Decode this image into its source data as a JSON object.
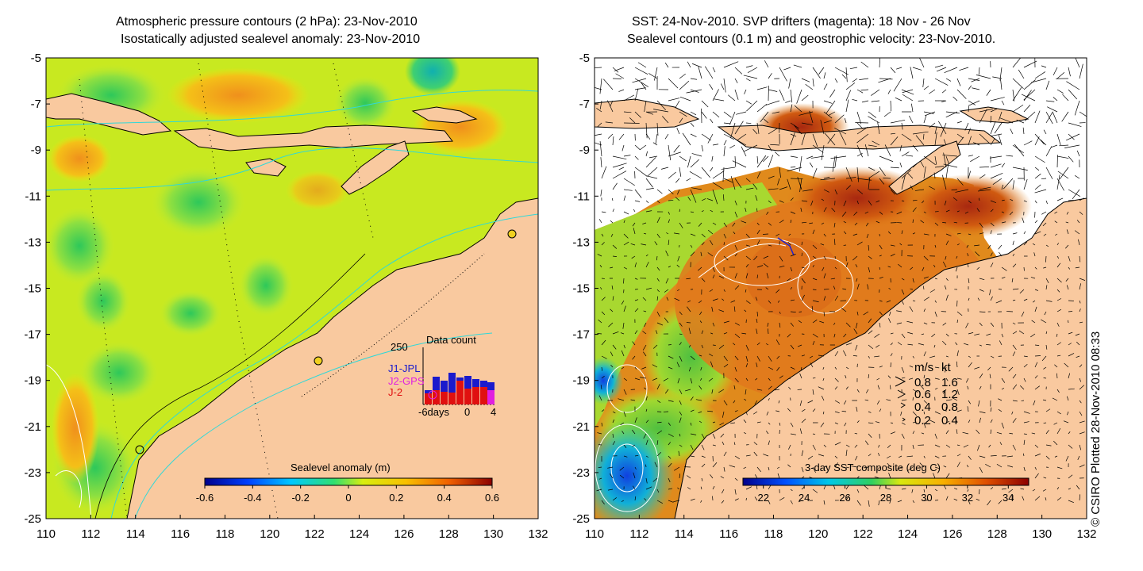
{
  "left_panel": {
    "title_line1": "Atmospheric pressure contours (2 hPa): 23-Nov-2010",
    "title_line2": "Isostatically adjusted sealevel anomaly: 23-Nov-2010",
    "colorbar": {
      "label": "Sealevel anomaly (m)",
      "ticks": [
        "-0.6",
        "-0.4",
        "-0.2",
        "0",
        "0.2",
        "0.4",
        "0.6"
      ],
      "range": [
        -0.6,
        0.6
      ]
    },
    "inset": {
      "title": "Data count",
      "ymax_label": "250",
      "legend": [
        {
          "label": "J1-JPL",
          "color": "#1a1acc"
        },
        {
          "label": "J2-GPS",
          "color": "#e020e0"
        },
        {
          "label": "J-2",
          "color": "#e01010"
        }
      ],
      "x_labels": [
        "-6days",
        "0",
        "4"
      ]
    }
  },
  "right_panel": {
    "title_line1": "SST: 24-Nov-2010. SVP drifters (magenta): 18 Nov - 26 Nov",
    "title_line2": "Sealevel contours (0.1 m) and geostrophic velocity: 23-Nov-2010.",
    "colorbar": {
      "label": "3-day SST composite (deg C)",
      "ticks": [
        "22",
        "24",
        "26",
        "28",
        "30",
        "32",
        "34"
      ],
      "range": [
        21,
        35
      ]
    },
    "speed_legend": {
      "header_ms": "m/s",
      "header_kt": "kt",
      "rows": [
        {
          "ms": "0.8",
          "kt": "1.6"
        },
        {
          "ms": "0.6",
          "kt": "1.2"
        },
        {
          "ms": "0.4",
          "kt": "0.8"
        },
        {
          "ms": "0.2",
          "kt": "0.4"
        }
      ]
    }
  },
  "axes": {
    "y_ticks": [
      "-5",
      "-7",
      "-9",
      "-11",
      "-13",
      "-15",
      "-17",
      "-19",
      "-21",
      "-23",
      "-25"
    ],
    "x_ticks": [
      "110",
      "112",
      "114",
      "116",
      "118",
      "120",
      "122",
      "124",
      "126",
      "128",
      "130",
      "132"
    ],
    "lon_range": [
      110,
      132
    ],
    "lat_range": [
      -25,
      -5
    ]
  },
  "credit": "© CSIRO Plotted 28-Nov-2010 08:33",
  "colors": {
    "land": "#f9c99f",
    "contour": "#30d8d8"
  }
}
